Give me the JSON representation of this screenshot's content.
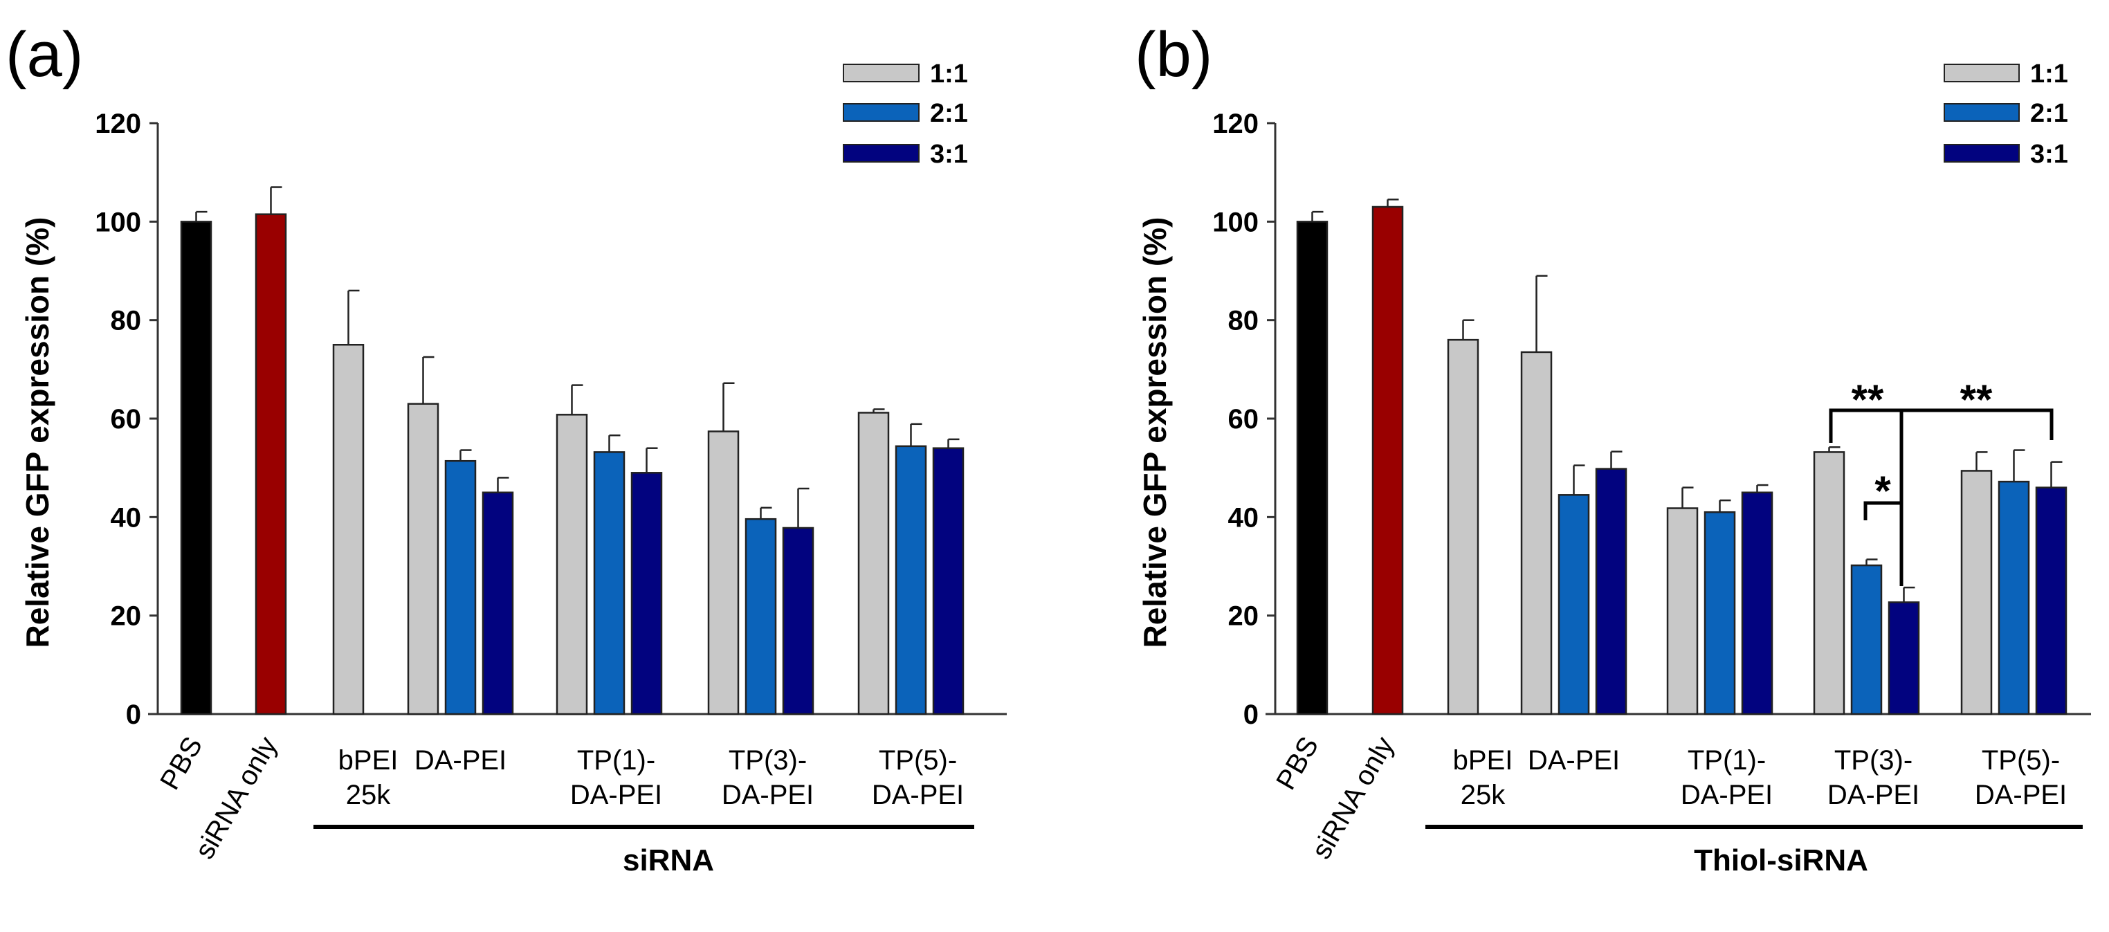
{
  "colors": {
    "PBS": "#000000",
    "siRNA only": "#990000",
    "1:1": "#c8c8c8",
    "2:1": "#0b63ba",
    "3:1": "#02037f"
  },
  "chart_data": [
    {
      "type": "bar",
      "panel_label": "(a)",
      "ylabel": "Relative GFP expression (%)",
      "ylim": [
        0,
        120
      ],
      "yticks": [
        "0",
        "20",
        "40",
        "60",
        "80",
        "100",
        "120"
      ],
      "group_label": "siRNA",
      "legend": [
        "1:1",
        "2:1",
        "3:1"
      ],
      "legend_position": "top-right",
      "controls": [
        {
          "label": "PBS",
          "value": 100,
          "error": 2
        },
        {
          "label": "siRNA only",
          "value": 101.5,
          "error": 5.5
        }
      ],
      "categories": [
        {
          "label": [
            "bPEI",
            "25k"
          ],
          "values": [
            75,
            null,
            null
          ],
          "errors": [
            11,
            null,
            null
          ]
        },
        {
          "label": [
            "DA-PEI"
          ],
          "values": [
            63,
            51.4,
            45
          ],
          "errors": [
            9.5,
            2.2,
            3
          ]
        },
        {
          "label": [
            "TP(1)-",
            "DA-PEI"
          ],
          "values": [
            60.8,
            53.2,
            49
          ],
          "errors": [
            6,
            3.4,
            5
          ]
        },
        {
          "label": [
            "TP(3)-",
            "DA-PEI"
          ],
          "values": [
            57.4,
            39.6,
            37.8
          ],
          "errors": [
            9.8,
            2.3,
            8
          ]
        },
        {
          "label": [
            "TP(5)-",
            "DA-PEI"
          ],
          "values": [
            61.2,
            54.4,
            54
          ],
          "errors": [
            0.7,
            4.5,
            1.8
          ]
        }
      ],
      "annotations": []
    },
    {
      "type": "bar",
      "panel_label": "(b)",
      "ylabel": "Relative GFP expression (%)",
      "ylim": [
        0,
        120
      ],
      "yticks": [
        "0",
        "20",
        "40",
        "60",
        "80",
        "100",
        "120"
      ],
      "group_label": "Thiol-siRNA",
      "legend": [
        "1:1",
        "2:1",
        "3:1"
      ],
      "legend_position": "top-right",
      "controls": [
        {
          "label": "PBS",
          "value": 100,
          "error": 2
        },
        {
          "label": "siRNA only",
          "value": 103,
          "error": 1.5
        }
      ],
      "categories": [
        {
          "label": [
            "bPEI",
            "25k"
          ],
          "values": [
            76,
            null,
            null
          ],
          "errors": [
            4,
            null,
            null
          ]
        },
        {
          "label": [
            "DA-PEI"
          ],
          "values": [
            73.5,
            44.5,
            49.8
          ],
          "errors": [
            15.5,
            6,
            3.5
          ]
        },
        {
          "label": [
            "TP(1)-",
            "DA-PEI"
          ],
          "values": [
            41.8,
            41,
            45
          ],
          "errors": [
            4.2,
            2.4,
            1.5
          ]
        },
        {
          "label": [
            "TP(3)-",
            "DA-PEI"
          ],
          "values": [
            53.2,
            30.2,
            22.7
          ],
          "errors": [
            1,
            1.2,
            3
          ]
        },
        {
          "label": [
            "TP(5)-",
            "DA-PEI"
          ],
          "values": [
            49.4,
            47.2,
            46
          ],
          "errors": [
            3.8,
            6.4,
            5.2
          ]
        }
      ],
      "annotations": [
        {
          "text": "**",
          "between": "TP(3)-DA-PEI 1:1 vs TP(3)-DA-PEI 3:1"
        },
        {
          "text": "**",
          "between": "TP(3)-DA-PEI 3:1 vs TP(5)-DA-PEI 3:1"
        },
        {
          "text": "*",
          "between": "TP(3)-DA-PEI 2:1 vs TP(3)-DA-PEI 3:1"
        }
      ]
    }
  ]
}
